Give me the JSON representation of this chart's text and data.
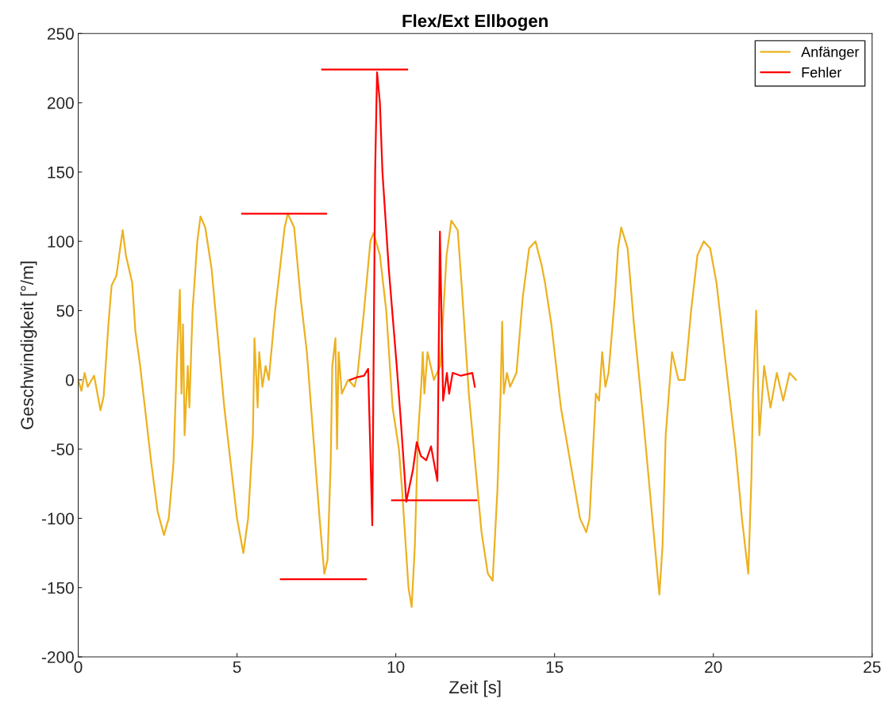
{
  "chart_data": {
    "type": "line",
    "title": "Flex/Ext Ellbogen",
    "xlabel": "Zeit [s]",
    "ylabel": "Geschwindigkeit [°/m]",
    "xlim": [
      0,
      25
    ],
    "xticks": [
      0,
      5,
      10,
      15,
      20,
      25
    ],
    "ylim": [
      -200,
      250
    ],
    "yticks": [
      -200,
      -150,
      -100,
      -50,
      0,
      50,
      100,
      150,
      200,
      250
    ],
    "grid": false,
    "legend": "top right",
    "line_style": "solid",
    "marker": "none",
    "series": [
      {
        "name": "Anfänger",
        "color": "#edb120",
        "x": [
          0,
          0.1,
          0.2,
          0.3,
          0.5,
          0.7,
          0.8,
          0.95,
          1.05,
          1.2,
          1.35,
          1.4,
          1.5,
          1.7,
          1.8,
          1.95,
          2.1,
          2.3,
          2.5,
          2.7,
          2.85,
          3.0,
          3.1,
          3.2,
          3.25,
          3.3,
          3.35,
          3.45,
          3.5,
          3.6,
          3.75,
          3.85,
          4.0,
          4.2,
          4.4,
          4.6,
          4.8,
          5.0,
          5.2,
          5.35,
          5.5,
          5.55,
          5.65,
          5.7,
          5.8,
          5.9,
          6.0,
          6.2,
          6.4,
          6.5,
          6.6,
          6.8,
          7.0,
          7.2,
          7.4,
          7.6,
          7.75,
          7.85,
          7.95,
          8.0,
          8.1,
          8.15,
          8.2,
          8.3,
          8.5,
          8.7,
          8.8,
          9.0,
          9.2,
          9.3,
          9.5,
          9.7,
          9.9,
          10.1,
          10.2,
          10.4,
          10.5,
          10.6,
          10.7,
          10.8,
          10.85,
          10.9,
          11.0,
          11.2,
          11.4,
          11.6,
          11.75,
          11.95,
          12.1,
          12.3,
          12.5,
          12.7,
          12.9,
          13.05,
          13.2,
          13.3,
          13.35,
          13.4,
          13.5,
          13.6,
          13.8,
          14.0,
          14.2,
          14.4,
          14.6,
          14.7,
          14.9,
          15.2,
          15.5,
          15.8,
          16.0,
          16.1,
          16.3,
          16.4,
          16.5,
          16.6,
          16.7,
          16.9,
          17.0,
          17.1,
          17.3,
          17.5,
          17.8,
          18.0,
          18.2,
          18.3,
          18.4,
          18.5,
          18.6,
          18.7,
          18.9,
          19.1,
          19.3,
          19.5,
          19.7,
          19.9,
          20.1,
          20.3,
          20.5,
          20.7,
          20.9,
          21.1,
          21.2,
          21.25,
          21.35,
          21.45,
          21.6,
          21.8,
          22.0,
          22.2,
          22.4,
          22.6
        ],
        "values": [
          0,
          -8,
          5,
          -5,
          3,
          -22,
          -12,
          40,
          68,
          75,
          100,
          108,
          90,
          70,
          35,
          10,
          -20,
          -60,
          -95,
          -112,
          -100,
          -60,
          10,
          65,
          -10,
          40,
          -40,
          10,
          -20,
          50,
          100,
          118,
          110,
          80,
          30,
          -20,
          -60,
          -100,
          -125,
          -100,
          -40,
          30,
          -20,
          20,
          -5,
          10,
          0,
          50,
          90,
          110,
          120,
          110,
          60,
          20,
          -40,
          -100,
          -140,
          -130,
          -60,
          10,
          30,
          -50,
          20,
          -10,
          0,
          -5,
          5,
          50,
          100,
          106,
          90,
          50,
          -20,
          -50,
          -80,
          -150,
          -164,
          -120,
          -40,
          -5,
          20,
          -10,
          20,
          0,
          10,
          90,
          115,
          108,
          60,
          -10,
          -60,
          -110,
          -140,
          -145,
          -80,
          -10,
          42,
          -10,
          5,
          -5,
          5,
          60,
          95,
          100,
          82,
          70,
          40,
          -20,
          -60,
          -100,
          -110,
          -100,
          -10,
          -15,
          20,
          -5,
          5,
          60,
          95,
          110,
          95,
          40,
          -30,
          -80,
          -130,
          -155,
          -120,
          -40,
          -10,
          20,
          0,
          0,
          50,
          90,
          100,
          95,
          70,
          30,
          -10,
          -50,
          -100,
          -140,
          -70,
          -10,
          50,
          -40,
          10,
          -20,
          5,
          -15,
          5,
          0
        ]
      },
      {
        "name": "Fehler",
        "color": "#ff0000",
        "x": [
          8.56,
          8.8,
          9.0,
          9.13,
          9.26,
          9.35,
          9.41,
          9.5,
          9.58,
          9.78,
          10.03,
          10.16,
          10.28,
          10.33,
          10.54,
          10.66,
          10.79,
          10.96,
          11.11,
          11.31,
          11.39,
          11.49,
          11.61,
          11.68,
          11.79,
          12.04,
          12.41,
          12.49
        ],
        "values": [
          0,
          2,
          3,
          8,
          -105,
          150,
          222,
          200,
          150,
          80,
          10,
          -30,
          -70,
          -88,
          -65,
          -45,
          -55,
          -58,
          -48,
          -73,
          107,
          -15,
          5,
          -10,
          5,
          3,
          5,
          -5
        ]
      },
      {
        "color": "#ff0000",
        "x": [
          5.16,
          7.81
        ],
        "values": [
          120,
          120
        ]
      },
      {
        "color": "#ff0000",
        "x": [
          7.68,
          10.36
        ],
        "values": [
          224,
          224
        ]
      },
      {
        "color": "#ff0000",
        "x": [
          6.38,
          9.06
        ],
        "values": [
          -144,
          -144
        ]
      },
      {
        "color": "#ff0000",
        "x": [
          9.88,
          12.54
        ],
        "values": [
          -87,
          -87
        ]
      }
    ]
  }
}
